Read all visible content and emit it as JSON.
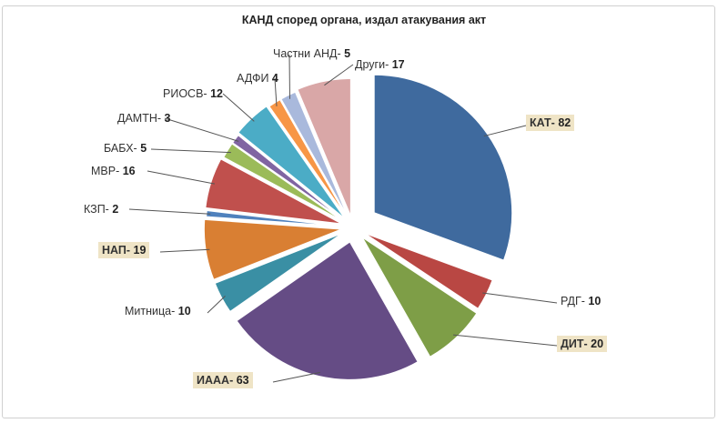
{
  "chart_data": {
    "type": "pie",
    "title": "КАНД според органа, издал атакувания  акт",
    "slices": [
      {
        "label": "КАТ-",
        "value": 82,
        "color": "#3f6a9e",
        "highlighted": true
      },
      {
        "label": "РДГ-",
        "value": 10,
        "color": "#b94743",
        "highlighted": false
      },
      {
        "label": "ДИТ-",
        "value": 20,
        "color": "#7e9e47",
        "highlighted": true
      },
      {
        "label": "ИААА-",
        "value": 63,
        "color": "#654c85",
        "highlighted": true
      },
      {
        "label": "Митница-",
        "value": 10,
        "color": "#3a8fa4",
        "highlighted": false
      },
      {
        "label": "НАП-",
        "value": 19,
        "color": "#d97f33",
        "highlighted": true
      },
      {
        "label": "КЗП-",
        "value": 2,
        "color": "#4f81bd",
        "highlighted": false
      },
      {
        "label": "МВР-",
        "value": 16,
        "color": "#c0504d",
        "highlighted": false
      },
      {
        "label": "БАБХ-",
        "value": 5,
        "color": "#9bbb59",
        "highlighted": false
      },
      {
        "label": "ДАМТН-",
        "value": 3,
        "color": "#8064a2",
        "highlighted": false
      },
      {
        "label": "РИОСВ-",
        "value": 12,
        "color": "#4bacc6",
        "highlighted": false
      },
      {
        "label": "АДФИ",
        "value": 4,
        "color": "#f79646",
        "highlighted": false
      },
      {
        "label": "Частни АНД-",
        "value": 5,
        "color": "#a9b9dc",
        "highlighted": false
      },
      {
        "label": "Други-",
        "value": 17,
        "color": "#d9a7a7",
        "highlighted": false
      }
    ]
  }
}
